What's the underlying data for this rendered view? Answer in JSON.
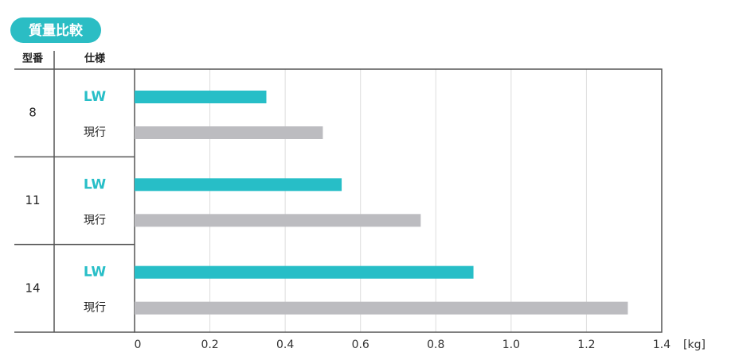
{
  "chart_data": {
    "type": "bar",
    "orientation": "horizontal",
    "title": "質量比較",
    "category_header": "型番",
    "series_header": "仕様",
    "categories": [
      "8",
      "11",
      "14"
    ],
    "series": [
      {
        "name": "LW",
        "color": "#27bec7",
        "values": [
          0.35,
          0.55,
          0.9
        ]
      },
      {
        "name": "現行",
        "color": "#bcbcc0",
        "values": [
          0.5,
          0.76,
          1.31
        ]
      }
    ],
    "xlim": [
      0,
      1.4
    ],
    "xticks": [
      0,
      0.2,
      0.4,
      0.6,
      0.8,
      {
        "value": 1,
        "label": "1.0"
      },
      1.2,
      1.4
    ],
    "x_unit": "[kg]",
    "grid": true
  }
}
